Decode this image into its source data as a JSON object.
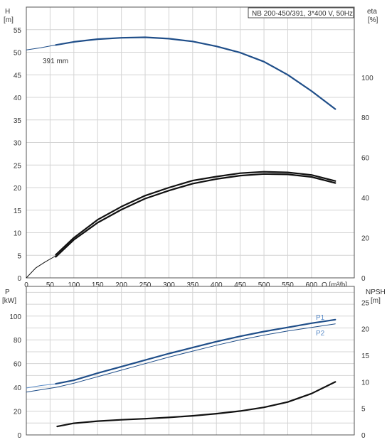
{
  "title_box": "NB 200-450/391, 3*400 V, 50Hz",
  "colors": {
    "blue": "#1f4e89",
    "black": "#111111",
    "grid": "#d4d4d4",
    "frame": "#555555",
    "light_blue": "#5b8cc8"
  },
  "chart_data": [
    {
      "type": "line",
      "panel": "head-and-efficiency",
      "xlabel": "Q [m³/h]",
      "x_ticks": [
        0,
        50,
        100,
        150,
        200,
        250,
        300,
        350,
        400,
        450,
        500,
        550,
        600
      ],
      "xlim": [
        0,
        690
      ],
      "ylabel_left": "H\n[m]",
      "ylim_left": [
        0,
        60
      ],
      "y_ticks_left": [
        0,
        5,
        10,
        15,
        20,
        25,
        30,
        35,
        40,
        45,
        50,
        55
      ],
      "ylabel_right": "eta\n[%]",
      "ylim_right": [
        0,
        135
      ],
      "y_ticks_right": [
        0,
        20,
        40,
        60,
        80,
        100
      ],
      "annotation": "391 mm",
      "grid": true,
      "series": [
        {
          "axis": "left",
          "style": "thin",
          "color": "#1f4e89",
          "x": [
            0,
            30,
            62
          ],
          "y": [
            50.5,
            51.0,
            51.6
          ]
        },
        {
          "axis": "left",
          "style": "thick",
          "color": "#1f4e89",
          "x": [
            62,
            100,
            150,
            200,
            250,
            300,
            350,
            400,
            450,
            500,
            550,
            600,
            650
          ],
          "y": [
            51.6,
            52.3,
            52.9,
            53.2,
            53.3,
            53.0,
            52.4,
            51.3,
            49.9,
            47.9,
            45.0,
            41.4,
            37.4
          ]
        },
        {
          "axis": "right",
          "style": "thin",
          "color": "#111111",
          "x": [
            0,
            20,
            40,
            62
          ],
          "y": [
            0,
            5,
            8,
            11
          ]
        },
        {
          "axis": "right",
          "style": "thick",
          "color": "#111111",
          "x": [
            62,
            100,
            150,
            200,
            250,
            300,
            350,
            400,
            450,
            500,
            550,
            600,
            650
          ],
          "y": [
            11.5,
            20,
            29,
            35.5,
            41,
            45,
            48.5,
            50.5,
            52.2,
            52.9,
            52.6,
            51.3,
            48.3
          ]
        },
        {
          "axis": "right",
          "style": "thick",
          "color": "#111111",
          "x": [
            62,
            100,
            150,
            200,
            250,
            300,
            350,
            400,
            450,
            500,
            550,
            600,
            650
          ],
          "y": [
            10.5,
            19,
            27.5,
            34,
            39.5,
            43.5,
            47,
            49.3,
            51,
            51.8,
            51.6,
            50.3,
            47.3
          ]
        }
      ]
    },
    {
      "type": "line",
      "panel": "power-and-npsh",
      "xlim": [
        0,
        690
      ],
      "ylabel_left": "P\n[kW]",
      "ylim_left": [
        0,
        125
      ],
      "y_ticks_left": [
        0,
        20,
        40,
        60,
        80,
        100
      ],
      "ylabel_right": "NPSH\n[m]",
      "ylim_right": [
        0,
        28
      ],
      "y_ticks_right": [
        0,
        5,
        10,
        15,
        20,
        25
      ],
      "grid": true,
      "series": [
        {
          "name": "P1",
          "axis": "left",
          "style": "thin",
          "color": "#5b8cc8",
          "x": [
            0,
            30,
            62
          ],
          "y": [
            39.5,
            41.5,
            43
          ]
        },
        {
          "name": "P1",
          "axis": "left",
          "style": "thick",
          "color": "#1f4e89",
          "x": [
            62,
            100,
            150,
            200,
            250,
            300,
            350,
            400,
            450,
            500,
            550,
            600,
            650
          ],
          "y": [
            43,
            46,
            52,
            57.5,
            63,
            68.5,
            73.5,
            78.5,
            83,
            87,
            90.5,
            94,
            97
          ]
        },
        {
          "name": "P2",
          "axis": "left",
          "style": "thin",
          "color": "#1f4e89",
          "x": [
            0,
            30,
            62,
            100,
            150,
            200,
            250,
            300,
            350,
            400,
            450,
            500,
            550,
            600,
            650
          ],
          "y": [
            36,
            38,
            40,
            43.5,
            49,
            54.5,
            60,
            65.5,
            70.5,
            75.5,
            80,
            84,
            87.5,
            90.5,
            93.5
          ]
        },
        {
          "axis": "right",
          "style": "thick",
          "color": "#111111",
          "x": [
            65,
            100,
            150,
            200,
            250,
            300,
            350,
            400,
            450,
            500,
            550,
            600,
            650
          ],
          "y": [
            1.6,
            2.2,
            2.6,
            2.85,
            3.05,
            3.3,
            3.6,
            4.0,
            4.5,
            5.2,
            6.2,
            7.8,
            10.0
          ]
        }
      ],
      "labels": [
        {
          "text": "P1",
          "series_x": 640,
          "series_y": 97
        },
        {
          "text": "P2",
          "series_x": 640,
          "series_y": 91
        }
      ]
    }
  ]
}
